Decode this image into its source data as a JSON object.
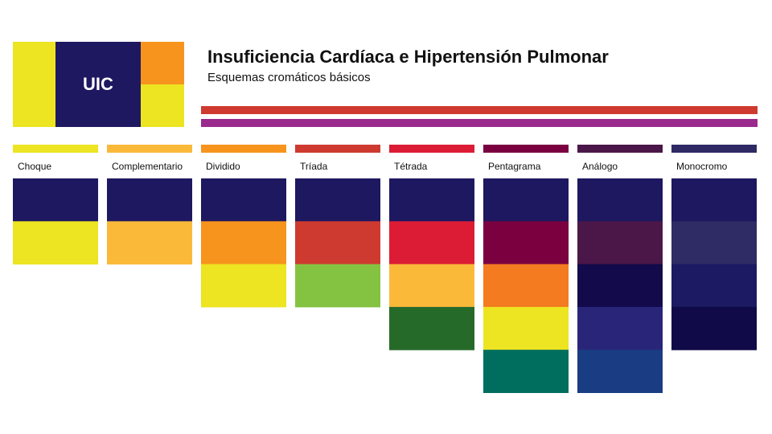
{
  "header": {
    "logo_text": "UIC",
    "title": "Insuficiencia Cardíaca e Hipertensión Pulmonar",
    "subtitle": "Esquemas cromáticos básicos"
  },
  "schemes": [
    {
      "name": "Choque",
      "color": "#ede422",
      "swatches": [
        "#1e1860",
        "#ede422"
      ]
    },
    {
      "name": "Complementario",
      "color": "#fbb93a",
      "swatches": [
        "#1e1860",
        "#fbb93a"
      ]
    },
    {
      "name": "Dividido",
      "color": "#f7941d",
      "swatches": [
        "#1e1860",
        "#f7941d",
        "#ede422"
      ]
    },
    {
      "name": "Tríada",
      "color": "#cf3a30",
      "swatches": [
        "#1e1860",
        "#cf3a30",
        "#84c341"
      ]
    },
    {
      "name": "Tétrada",
      "color": "#dc1c35",
      "swatches": [
        "#1e1860",
        "#dc1c35",
        "#fbb93a",
        "#266a2a"
      ]
    },
    {
      "name": "Pentagrama",
      "color": "#7a0040",
      "swatches": [
        "#1e1860",
        "#7a0040",
        "#f47b20",
        "#ede422",
        "#006e5f"
      ]
    },
    {
      "name": "Análogo",
      "color": "#4b1748",
      "swatches": [
        "#1e1860",
        "#4b1748",
        "#120a4a",
        "#29267a",
        "#1a3c82"
      ]
    },
    {
      "name": "Monocromo",
      "color": "#2d2a64",
      "swatches": [
        "#1e1860",
        "#2e2b65",
        "#1c1a62",
        "#100a48"
      ]
    }
  ]
}
